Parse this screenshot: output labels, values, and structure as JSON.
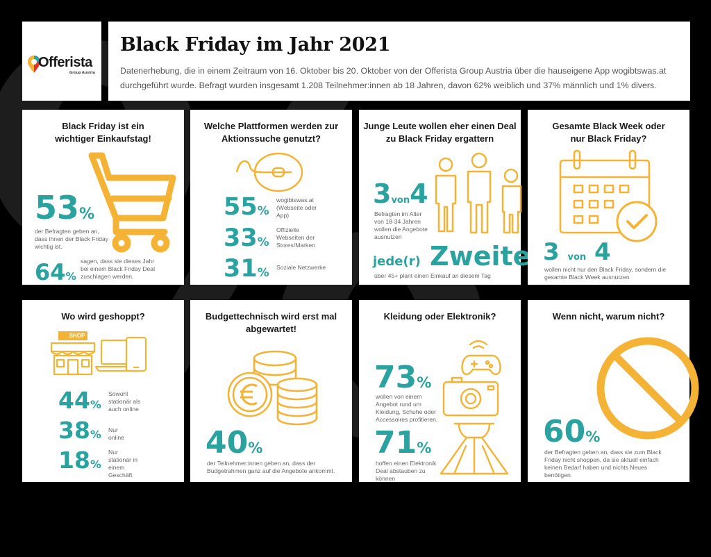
{
  "header": {
    "title": "Black Friday im Jahr 2021",
    "description": "Datenerhebung, die in einem Zeitraum von 16. Oktober bis 20. Oktober von der Offerista Group Austria über die hauseigene App wogibtswas.at durchgeführt wurde. Befragt wurden insgesamt 1.208 Teilnehmer:innen ab 18 Jahren, davon 62% weiblich und 37% männlich und 1% divers."
  },
  "logo": {
    "name": "Offerista",
    "tagline": "Group Austria"
  },
  "colors": {
    "accent_teal": "#2aa3a0",
    "accent_yellow": "#f5b335",
    "background": "#000000"
  },
  "cards": {
    "einkaufstag": {
      "title": "Black Friday ist ein wichtiger Einkaufstag!",
      "icon": "shopping-cart-icon",
      "stat1": {
        "value": "53",
        "unit": "%",
        "text": "der Befragten geben an, dass ihnen der Black Friday wichtig ist."
      },
      "stat2": {
        "value": "64",
        "unit": "%",
        "text": "sagen, dass sie dieses Jahr bei einem Black Friday Deal zuschlagen werden."
      }
    },
    "plattformen": {
      "title": "Welche Plattformen werden zur Aktionssuche genutzt?",
      "icon": "mouse-icon",
      "rows": [
        {
          "value": "55",
          "unit": "%",
          "text": "wogibtswas.at (Webseite oder App)"
        },
        {
          "value": "33",
          "unit": "%",
          "text": "Offizielle Webseiten der Stores/Marken"
        },
        {
          "value": "31",
          "unit": "%",
          "text": "Soziale Netzwerke"
        }
      ]
    },
    "junge": {
      "title": "Junge Leute wollen eher einen Deal zu Black Friday ergattern",
      "icon": "people-icon",
      "big_num": "3",
      "big_von": "von",
      "big_den": "4",
      "text1": "Befragten im Alter von 18-34 Jahren wollen die Angebote ausnutzen",
      "prefix": "jede(r)",
      "word": "Zweite",
      "text2": "über 45+ plant einen Einkauf an diesem Tag"
    },
    "blackweek": {
      "title": "Gesamte Black Week oder nur Black Friday?",
      "icon": "calendar-check-icon",
      "big_num": "3",
      "big_von": "von",
      "big_den": "4",
      "text": "wollen nicht nur den Black Friday, sondern die gesamte Black Week ausnutzen"
    },
    "geshoppt": {
      "title": "Wo wird geshoppt?",
      "icon": "shop-devices-icon",
      "shop_sign": "SHOP",
      "rows": [
        {
          "value": "44",
          "unit": "%",
          "text": "Sowohl stationär als auch online"
        },
        {
          "value": "38",
          "unit": "%",
          "text": "Nur online"
        },
        {
          "value": "18",
          "unit": "%",
          "text": "Nur stationär in einem Geschäft"
        }
      ]
    },
    "budget": {
      "title": "Budgettechnisch wird erst mal abgewartet!",
      "icon": "euro-coins-icon",
      "value": "40",
      "unit": "%",
      "text": "der Teilnehmer:innen geben an, dass der Budgetrahmen ganz auf die Angebote ankommt."
    },
    "kleidung": {
      "title": "Kleidung oder Elektronik?",
      "icon": "camera-gamepad-dress-icon",
      "stat1": {
        "value": "73",
        "unit": "%",
        "text": "wollen von einem Angebot rund um Kleidung, Schuhe oder Accessoires profitieren."
      },
      "stat2": {
        "value": "71",
        "unit": "%",
        "text": "hoffen einen Elektronik Deal abstauben zu können"
      }
    },
    "warumnicht": {
      "title": "Wenn nicht, warum nicht?",
      "icon": "prohibited-icon",
      "value": "60",
      "unit": "%",
      "text": "der Befragten geben an, dass sie zum Black Friday nicht shoppen, da sie aktuell einfach keinen Bedarf haben und nichts Neues benötigen."
    }
  }
}
